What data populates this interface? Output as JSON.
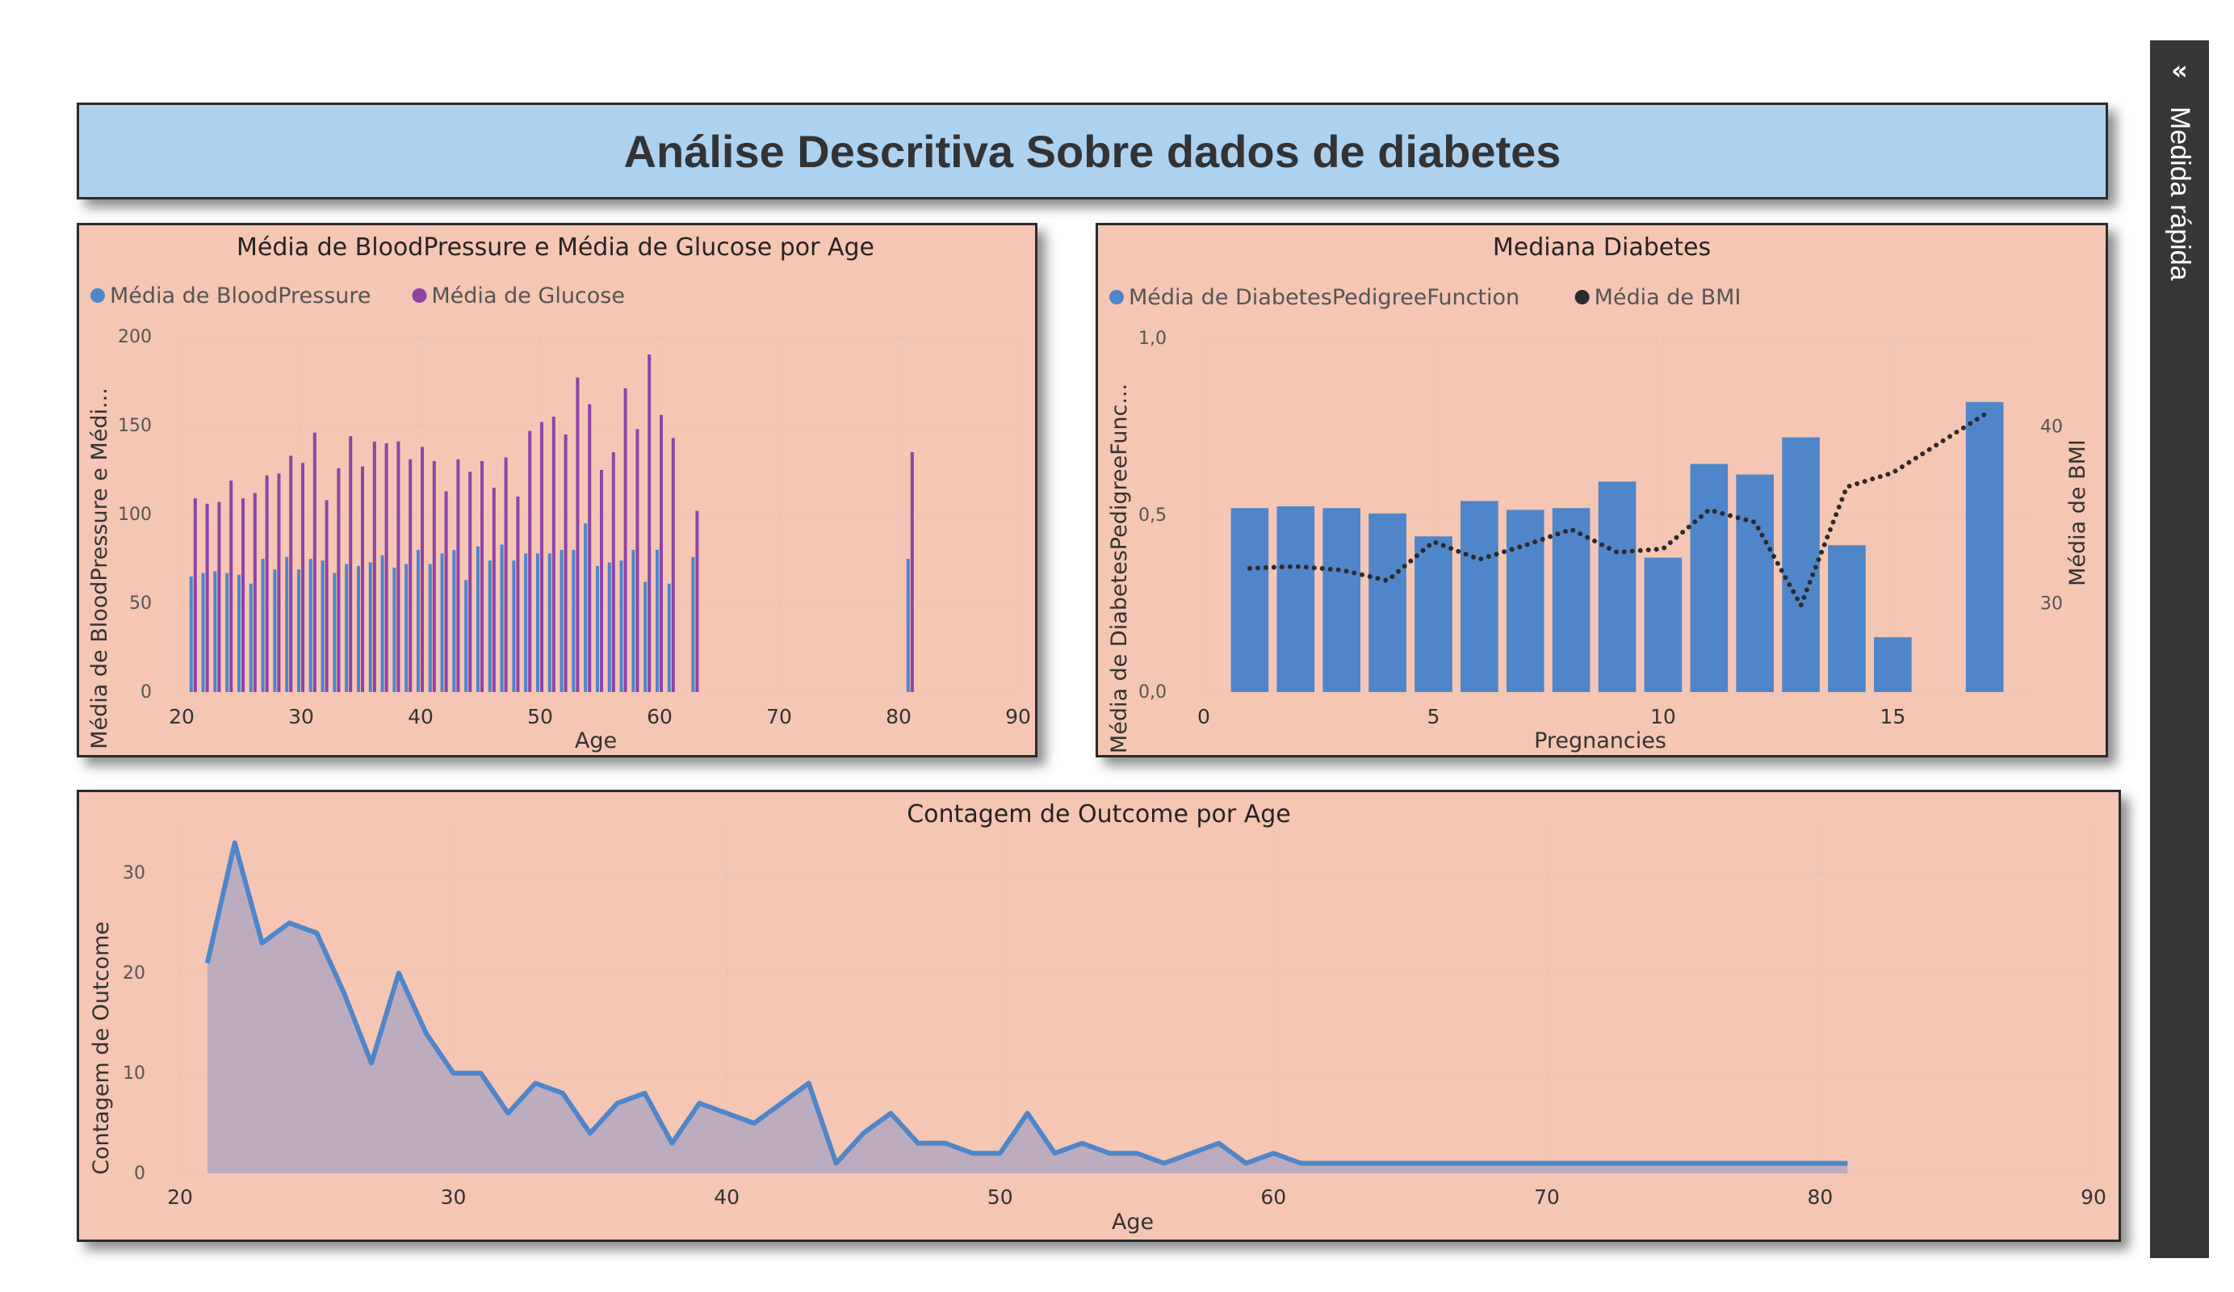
{
  "page_title": "Análise Descritiva Sobre dados de diabetes",
  "side_pane": {
    "label": "Medida rápida",
    "chevron": "«"
  },
  "colors": {
    "blue": "#4f86c9",
    "purple": "#8e44a6",
    "dark": "#2b2b2b",
    "panel_bg": "#f5c6b4",
    "banner_bg": "#acd2f0",
    "area_fill": "#b2a7be"
  },
  "chart_data": [
    {
      "type": "bar",
      "title": "Média de BloodPressure e Média de Glucose por Age",
      "xlabel": "Age",
      "ylabel": "Média de BloodPressure e Médi...",
      "xlim": [
        20,
        90
      ],
      "ylim": [
        0,
        200
      ],
      "x_ticks": [
        20,
        30,
        40,
        50,
        60,
        70,
        80,
        90
      ],
      "y_ticks": [
        0,
        50,
        100,
        150,
        200
      ],
      "legend_position": "top-left",
      "x": [
        21,
        22,
        23,
        24,
        25,
        26,
        27,
        28,
        29,
        30,
        31,
        32,
        33,
        34,
        35,
        36,
        37,
        38,
        39,
        40,
        41,
        42,
        43,
        44,
        45,
        46,
        47,
        48,
        49,
        50,
        51,
        52,
        53,
        54,
        55,
        56,
        57,
        58,
        59,
        60,
        61,
        63,
        81
      ],
      "series": [
        {
          "name": "Média de BloodPressure",
          "color": "#4f86c9",
          "values": [
            65,
            67,
            68,
            67,
            66,
            61,
            75,
            69,
            76,
            69,
            75,
            74,
            67,
            72,
            71,
            73,
            77,
            70,
            72,
            80,
            72,
            78,
            80,
            63,
            82,
            74,
            83,
            74,
            78,
            78,
            78,
            80,
            80,
            95,
            71,
            73,
            74,
            80,
            62,
            80,
            61,
            76,
            75
          ]
        },
        {
          "name": "Média de Glucose",
          "color": "#8e44a6",
          "values": [
            109,
            106,
            107,
            119,
            109,
            112,
            122,
            123,
            133,
            129,
            146,
            108,
            126,
            144,
            127,
            141,
            140,
            141,
            131,
            138,
            130,
            113,
            131,
            124,
            130,
            115,
            132,
            110,
            147,
            152,
            155,
            145,
            177,
            162,
            125,
            135,
            171,
            148,
            190,
            156,
            143,
            102,
            135
          ]
        }
      ]
    },
    {
      "type": "bar",
      "title": "Mediana Diabetes",
      "xlabel": "Pregnancies",
      "ylabel": "Média de DiabetesPedigreeFunc...",
      "y2label": "Média de BMI",
      "xlim": [
        0,
        18
      ],
      "ylim": [
        0,
        1
      ],
      "y2lim": [
        25,
        45
      ],
      "x_ticks": [
        0,
        5,
        10,
        15
      ],
      "y_ticks": [
        "0,0",
        "0,5",
        "1,0"
      ],
      "y2_ticks": [
        30,
        40
      ],
      "legend_position": "top-left",
      "x": [
        1,
        2,
        3,
        4,
        5,
        6,
        7,
        8,
        9,
        10,
        11,
        12,
        13,
        14,
        15,
        17
      ],
      "series": [
        {
          "name": "Média de DiabetesPedigreeFunction",
          "color": "#4f86c9",
          "type": "bar",
          "values": [
            0.52,
            0.525,
            0.52,
            0.505,
            0.44,
            0.54,
            0.515,
            0.52,
            0.595,
            0.38,
            0.645,
            0.615,
            0.72,
            0.415,
            0.155,
            0.82
          ]
        },
        {
          "name": "Média de BMI",
          "color": "#2b2b2b",
          "type": "line",
          "style": "dotted",
          "axis": "y2",
          "values": [
            32.0,
            32.1,
            31.9,
            31.3,
            33.5,
            32.5,
            33.3,
            34.2,
            32.9,
            33.1,
            35.3,
            34.6,
            29.9,
            36.6,
            37.4,
            40.7
          ]
        }
      ]
    },
    {
      "type": "area",
      "title": "Contagem de Outcome por Age",
      "xlabel": "Age",
      "ylabel": "Contagem de Outcome",
      "xlim": [
        20,
        90
      ],
      "ylim": [
        0,
        35
      ],
      "x_ticks": [
        20,
        30,
        40,
        50,
        60,
        70,
        80,
        90
      ],
      "y_ticks": [
        0,
        10,
        20,
        30
      ],
      "color": "#4f86c9",
      "x": [
        21,
        22,
        23,
        24,
        25,
        26,
        27,
        28,
        29,
        30,
        31,
        32,
        33,
        34,
        35,
        36,
        37,
        38,
        39,
        40,
        41,
        42,
        43,
        44,
        45,
        46,
        47,
        48,
        49,
        50,
        51,
        52,
        53,
        54,
        55,
        56,
        57,
        58,
        59,
        60,
        61,
        81
      ],
      "values": [
        21,
        33,
        23,
        25,
        24,
        18,
        11,
        20,
        14,
        10,
        10,
        6,
        9,
        8,
        4,
        7,
        8,
        3,
        7,
        6,
        5,
        7,
        9,
        1,
        4,
        6,
        3,
        3,
        2,
        2,
        6,
        2,
        3,
        2,
        2,
        1,
        2,
        3,
        1,
        2,
        1,
        1
      ]
    }
  ]
}
